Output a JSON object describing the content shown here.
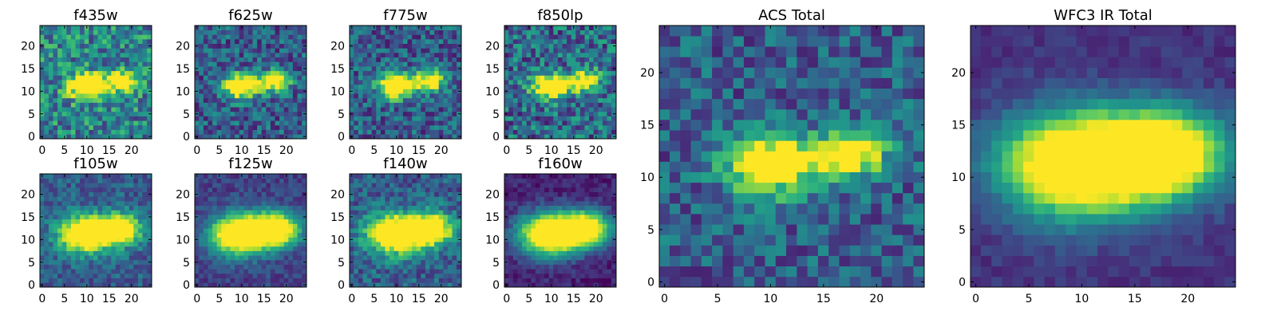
{
  "chart_data": [
    {
      "type": "heatmap",
      "title": "f435w",
      "xticks": [
        0,
        5,
        10,
        15,
        20
      ],
      "yticks": [
        0,
        5,
        10,
        15,
        20
      ],
      "xlim": [
        0,
        25
      ],
      "ylim": [
        0,
        25
      ],
      "colormap": "viridis"
    },
    {
      "type": "heatmap",
      "title": "f625w",
      "xticks": [
        0,
        5,
        10,
        15,
        20
      ],
      "yticks": [
        0,
        5,
        10,
        15,
        20
      ],
      "xlim": [
        0,
        25
      ],
      "ylim": [
        0,
        25
      ],
      "colormap": "viridis"
    },
    {
      "type": "heatmap",
      "title": "f775w",
      "xticks": [
        0,
        5,
        10,
        15,
        20
      ],
      "yticks": [
        0,
        5,
        10,
        15,
        20
      ],
      "xlim": [
        0,
        25
      ],
      "ylim": [
        0,
        25
      ],
      "colormap": "viridis"
    },
    {
      "type": "heatmap",
      "title": "f850lp",
      "xticks": [
        0,
        5,
        10,
        15,
        20
      ],
      "yticks": [
        0,
        5,
        10,
        15,
        20
      ],
      "xlim": [
        0,
        25
      ],
      "ylim": [
        0,
        25
      ],
      "colormap": "viridis"
    },
    {
      "type": "heatmap",
      "title": "f105w",
      "xticks": [
        0,
        5,
        10,
        15,
        20
      ],
      "yticks": [
        0,
        5,
        10,
        15,
        20
      ],
      "xlim": [
        0,
        25
      ],
      "ylim": [
        0,
        25
      ],
      "colormap": "viridis"
    },
    {
      "type": "heatmap",
      "title": "f125w",
      "xticks": [
        0,
        5,
        10,
        15,
        20
      ],
      "yticks": [
        0,
        5,
        10,
        15,
        20
      ],
      "xlim": [
        0,
        25
      ],
      "ylim": [
        0,
        25
      ],
      "colormap": "viridis"
    },
    {
      "type": "heatmap",
      "title": "f140w",
      "xticks": [
        0,
        5,
        10,
        15,
        20
      ],
      "yticks": [
        0,
        5,
        10,
        15,
        20
      ],
      "xlim": [
        0,
        25
      ],
      "ylim": [
        0,
        25
      ],
      "colormap": "viridis"
    },
    {
      "type": "heatmap",
      "title": "f160w",
      "xticks": [
        0,
        5,
        10,
        15,
        20
      ],
      "yticks": [
        0,
        5,
        10,
        15,
        20
      ],
      "xlim": [
        0,
        25
      ],
      "ylim": [
        0,
        25
      ],
      "colormap": "viridis"
    },
    {
      "type": "heatmap",
      "title": "ACS Total",
      "xticks": [
        0,
        5,
        10,
        15,
        20
      ],
      "yticks": [
        0,
        5,
        10,
        15,
        20
      ],
      "xlim": [
        0,
        25
      ],
      "ylim": [
        0,
        25
      ],
      "colormap": "viridis"
    },
    {
      "type": "heatmap",
      "title": "WFC3 IR Total",
      "xticks": [
        0,
        5,
        10,
        15,
        20
      ],
      "yticks": [
        0,
        5,
        10,
        15,
        20
      ],
      "xlim": [
        0,
        25
      ],
      "ylim": [
        0,
        25
      ],
      "colormap": "viridis"
    }
  ]
}
